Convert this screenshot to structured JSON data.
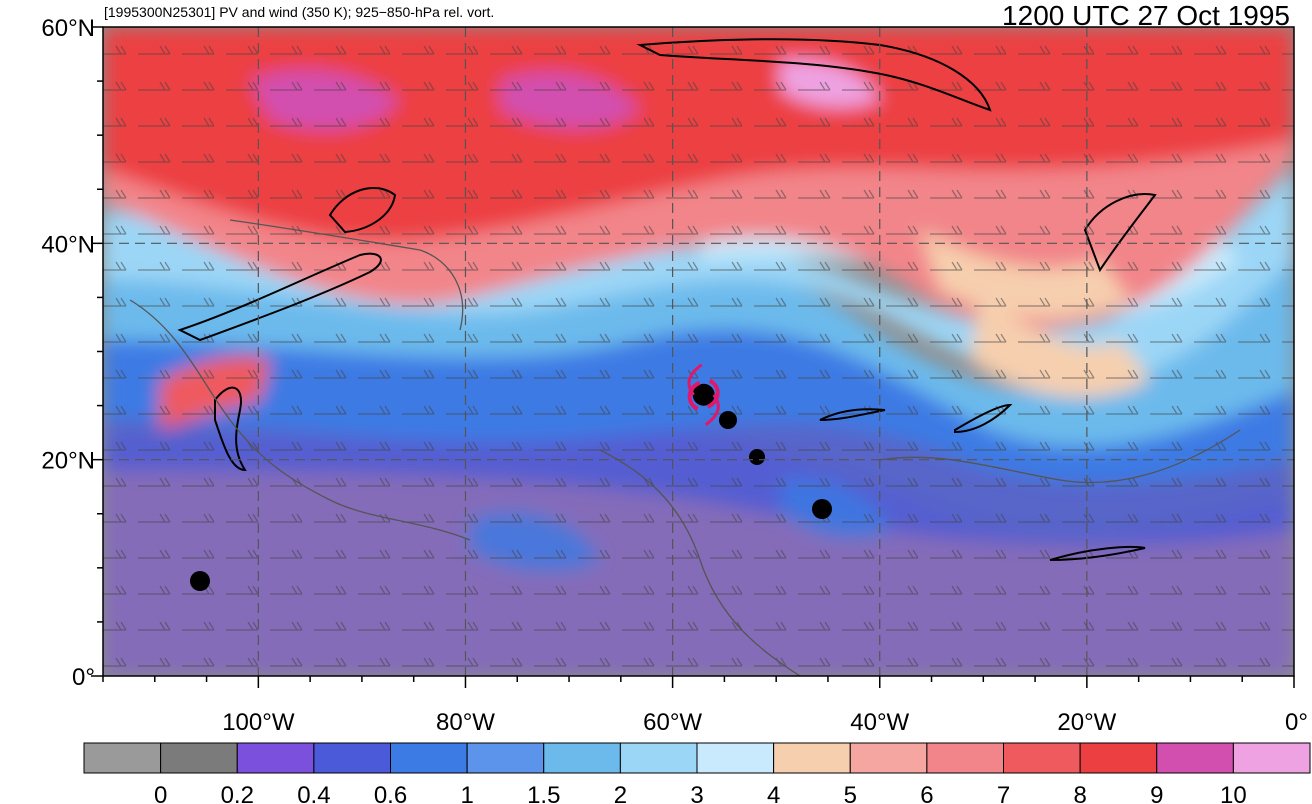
{
  "header": {
    "left_title": "[1995300N25301] PV and wind (350 K); 925−850-hPa rel. vort.",
    "right_title": "1200 UTC 27 Oct 1995"
  },
  "map": {
    "lon_range": [
      -115,
      0
    ],
    "lat_range": [
      0,
      60
    ],
    "lat_labels": [
      "0°",
      "20°N",
      "40°N",
      "60°N"
    ],
    "lon_labels": [
      "100°W",
      "80°W",
      "60°W",
      "40°W",
      "20°W",
      "0°"
    ],
    "storm_marker": {
      "lon": -57,
      "lat": 26,
      "color": "#e0186c"
    }
  },
  "colorbar": {
    "colors": [
      "#9a9a9a",
      "#7b7b7b",
      "#7b50dc",
      "#4a5ad8",
      "#3c7ae4",
      "#5b94ea",
      "#6cbaec",
      "#9cd6f6",
      "#c8eafc",
      "#f6cfae",
      "#f6a6a0",
      "#f2858a",
      "#ee5a5e",
      "#ec3f42",
      "#d24fb0",
      "#eea2e2"
    ],
    "labels": [
      "0",
      "0.2",
      "0.4",
      "0.6",
      "1",
      "1.5",
      "2",
      "3",
      "4",
      "5",
      "6",
      "7",
      "8",
      "9",
      "10"
    ]
  }
}
